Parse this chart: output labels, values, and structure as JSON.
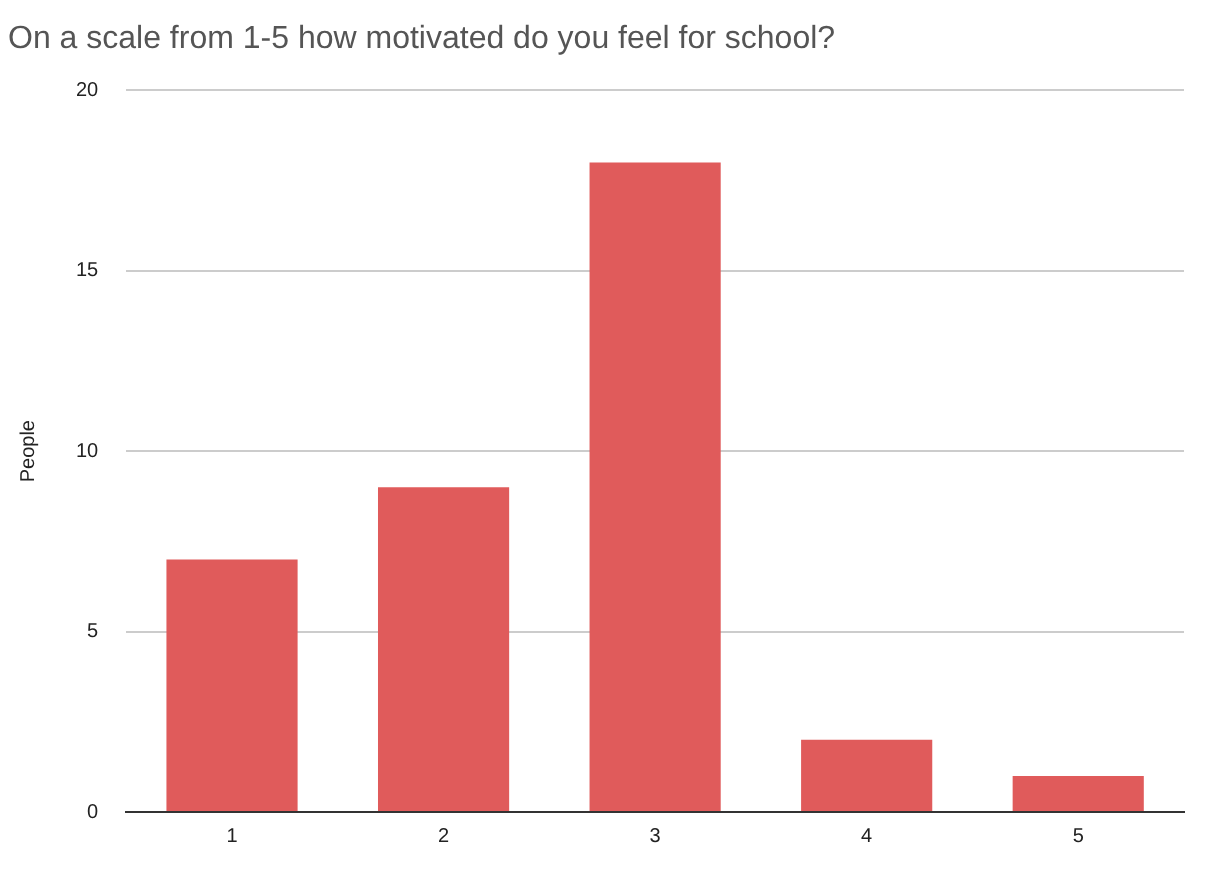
{
  "chart_data": {
    "type": "bar",
    "title": "On a scale from 1-5 how motivated do you feel for school?",
    "ylabel": "People",
    "categories": [
      "1",
      "2",
      "3",
      "4",
      "5"
    ],
    "values": [
      7,
      9,
      18,
      2,
      1
    ],
    "color": "#e05b5b",
    "ylim": [
      0,
      20
    ],
    "yticks": [
      0,
      5,
      10,
      15,
      20
    ],
    "grid": "y"
  }
}
